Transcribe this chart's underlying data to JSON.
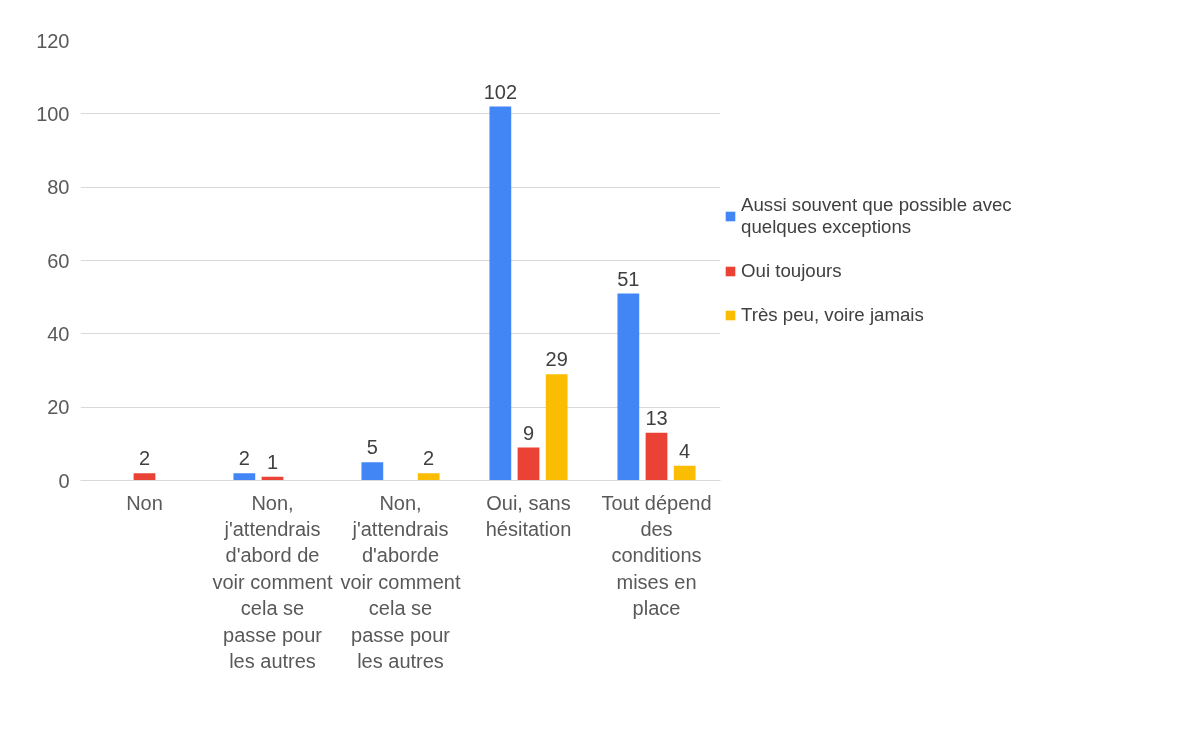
{
  "chart_data": {
    "type": "bar",
    "categories": [
      "Non",
      "Non, j'attendrais d'abord de voir comment cela se passe pour les autres",
      "Non, j'attendrais d'aborde voir comment cela se passe pour les autres",
      "Oui, sans hésitation",
      "Tout dépend des conditions mises en place"
    ],
    "series": [
      {
        "name": "Aussi souvent que possible avec quelques exceptions",
        "color": "#4285f4",
        "values": [
          null,
          2,
          5,
          102,
          51
        ]
      },
      {
        "name": "Oui toujours",
        "color": "#ea4335",
        "values": [
          2,
          1,
          null,
          9,
          13
        ]
      },
      {
        "name": "Très peu, voire jamais",
        "color": "#fbbc04",
        "values": [
          null,
          null,
          2,
          29,
          4
        ]
      }
    ],
    "ylim": [
      0,
      120
    ],
    "yticks": [
      0,
      20,
      40,
      60,
      80,
      100,
      120
    ],
    "grid": "y",
    "legend": "right",
    "data_labels": true
  }
}
